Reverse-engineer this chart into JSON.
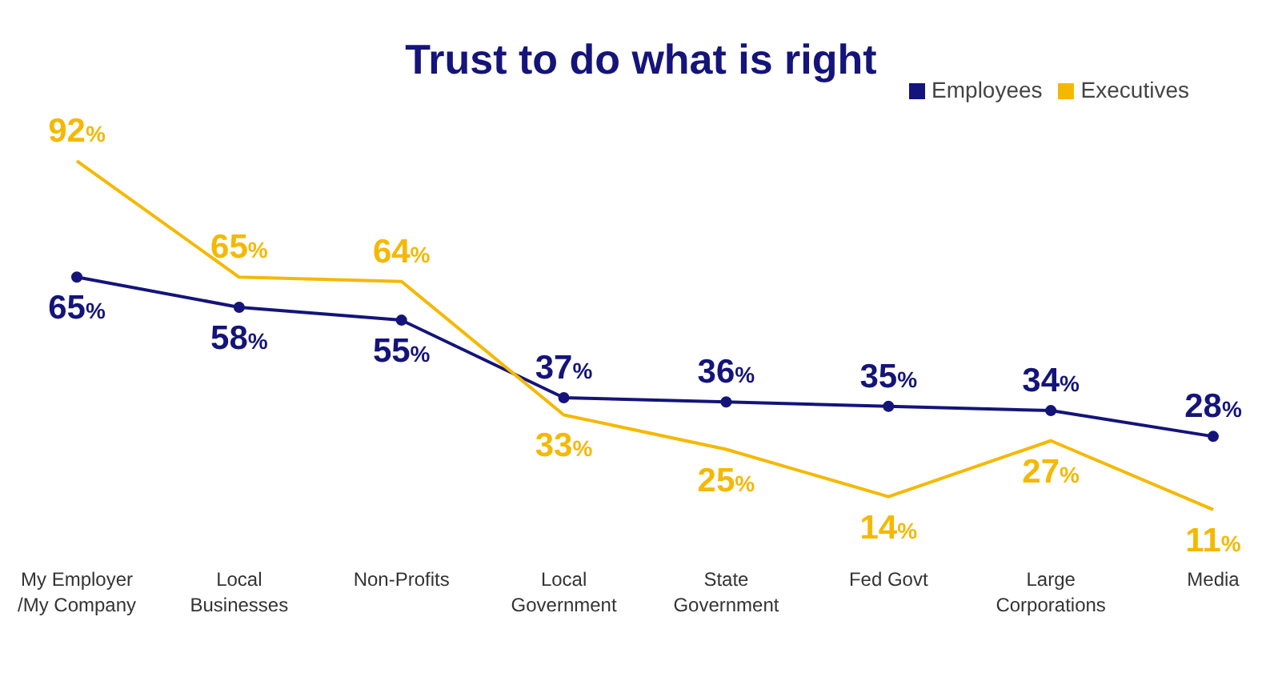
{
  "chart_data": {
    "type": "line",
    "title": "Trust to do what is right",
    "categories": [
      "My Employer\n/My Company",
      "Local\nBusinesses",
      "Non-Profits",
      "Local\nGovernment",
      "State\nGovernment",
      "Fed Govt",
      "Large\nCorporations",
      "Media"
    ],
    "series": [
      {
        "name": "Employees",
        "color": "#14147a",
        "marker": "circle",
        "values": [
          65,
          58,
          55,
          37,
          36,
          35,
          34,
          28
        ],
        "value_labels": [
          "65%",
          "58%",
          "55%",
          "37%",
          "36%",
          "35%",
          "34%",
          "28%"
        ]
      },
      {
        "name": "Executives",
        "color": "#f5b800",
        "marker": "none",
        "values": [
          92,
          65,
          64,
          33,
          25,
          14,
          27,
          11
        ],
        "value_labels": [
          "92%",
          "65%",
          "64%",
          "33%",
          "25%",
          "14%",
          "27%",
          "11%"
        ]
      }
    ],
    "legend": "top right",
    "tick_labels": "x",
    "grid": false
  }
}
